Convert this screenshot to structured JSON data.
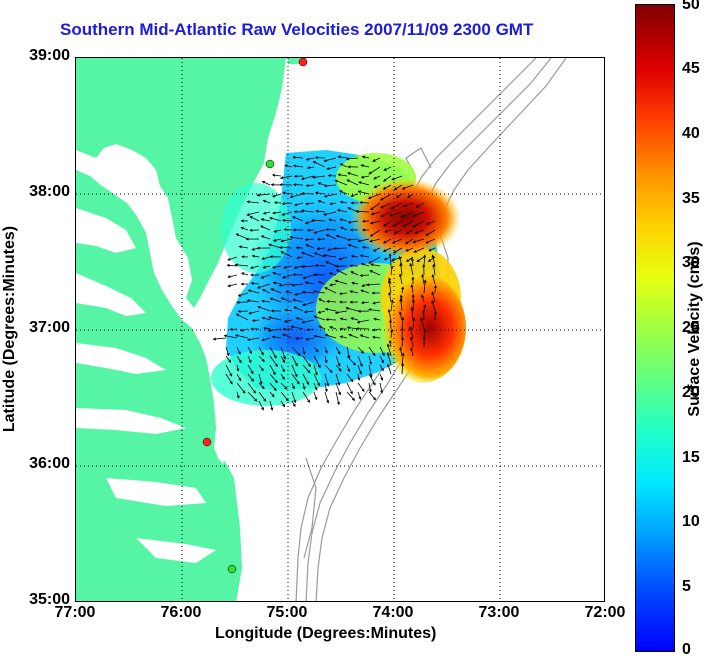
{
  "title": "Southern Mid-Atlantic Raw Velocities 2007/11/09 2300 GMT",
  "xlabel": "Longitude (Degrees:Minutes)",
  "ylabel": "Latitude (Degrees:Minutes)",
  "colorbar_label": "Surface Velocity (cm/s)",
  "x_ticks": [
    "77:00",
    "76:00",
    "75:00",
    "74:00",
    "73:00",
    "72:00"
  ],
  "y_ticks": [
    "39:00",
    "38:00",
    "37:00",
    "36:00",
    "35:00"
  ],
  "colorbar_ticks": [
    "50",
    "45",
    "40",
    "35",
    "30",
    "25",
    "20",
    "15",
    "10",
    "5",
    "0"
  ],
  "colors": {
    "land": "#55f5a5",
    "title": "#1c1cdc",
    "bathymetry": "#9a9a9a",
    "station_active": "#ff2020",
    "station_other": "#33dd33"
  },
  "map": {
    "lon_range": [
      -77,
      -72
    ],
    "lat_range": [
      35,
      39
    ],
    "grid": "dotted"
  },
  "colorbar": {
    "min": 0,
    "max": 50,
    "colormap": "jet"
  }
}
